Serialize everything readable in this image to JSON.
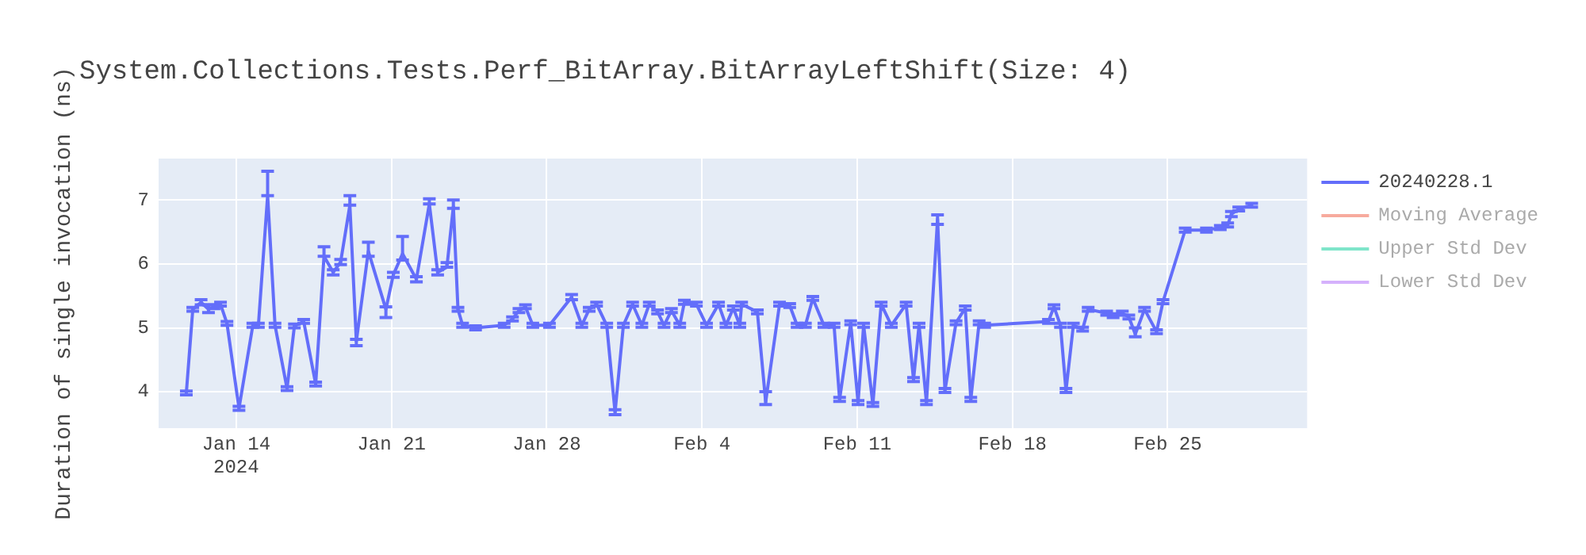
{
  "chart_data": {
    "type": "line",
    "title": "System.Collections.Tests.Perf_BitArray.BitArrayLeftShift(Size: 4)",
    "ylabel": "Duration of single invocation (ns)",
    "x": [
      "2024-01-11T18:00",
      "2024-01-12T01:00",
      "2024-01-12T10:00",
      "2024-01-12T18:00",
      "2024-01-13T00:00",
      "2024-01-13T07:00",
      "2024-01-13T14:00",
      "2024-01-14T03:00",
      "2024-01-14T18:00",
      "2024-01-15T00:00",
      "2024-01-15T10:00",
      "2024-01-15T18:00",
      "2024-01-16T07:00",
      "2024-01-16T15:00",
      "2024-01-17T01:00",
      "2024-01-17T14:00",
      "2024-01-17T23:00",
      "2024-01-18T09:00",
      "2024-01-18T17:00",
      "2024-01-19T03:00",
      "2024-01-19T10:00",
      "2024-01-19T23:00",
      "2024-01-20T18:00",
      "2024-01-21T02:00",
      "2024-01-21T12:00",
      "2024-01-22T03:00",
      "2024-01-22T17:00",
      "2024-01-23T02:00",
      "2024-01-23T12:00",
      "2024-01-23T19:00",
      "2024-01-24T00:00",
      "2024-01-24T05:00",
      "2024-01-24T19:00",
      "2024-01-26T02:00",
      "2024-01-26T11:00",
      "2024-01-26T18:00",
      "2024-01-27T01:00",
      "2024-01-27T09:00",
      "2024-01-28T03:00",
      "2024-01-29T03:00",
      "2024-01-29T14:00",
      "2024-01-29T22:00",
      "2024-01-30T06:00",
      "2024-01-30T17:00",
      "2024-01-31T02:00",
      "2024-01-31T11:00",
      "2024-01-31T21:00",
      "2024-02-01T07:00",
      "2024-02-01T15:00",
      "2024-02-02T00:00",
      "2024-02-02T07:00",
      "2024-02-02T15:00",
      "2024-02-03T00:00",
      "2024-02-03T05:00",
      "2024-02-03T18:00",
      "2024-02-04T05:00",
      "2024-02-04T18:00",
      "2024-02-05T02:00",
      "2024-02-05T10:00",
      "2024-02-05T17:00",
      "2024-02-05T19:00",
      "2024-02-06T12:00",
      "2024-02-06T21:00",
      "2024-02-07T12:00",
      "2024-02-07T23:00",
      "2024-02-08T07:00",
      "2024-02-08T16:00",
      "2024-02-09T00:00",
      "2024-02-09T12:00",
      "2024-02-09T23:00",
      "2024-02-10T05:00",
      "2024-02-10T17:00",
      "2024-02-11T01:00",
      "2024-02-11T07:00",
      "2024-02-11T17:00",
      "2024-02-12T02:00",
      "2024-02-12T13:00",
      "2024-02-13T05:00",
      "2024-02-13T13:00",
      "2024-02-13T19:00",
      "2024-02-14T03:00",
      "2024-02-14T15:00",
      "2024-02-14T23:00",
      "2024-02-15T11:00",
      "2024-02-15T21:00",
      "2024-02-16T03:00",
      "2024-02-16T12:00",
      "2024-02-16T18:00",
      "2024-02-19T15:00",
      "2024-02-19T21:00",
      "2024-02-20T04:00",
      "2024-02-20T10:00",
      "2024-02-20T18:00",
      "2024-02-21T04:00",
      "2024-02-21T10:00",
      "2024-02-22T06:00",
      "2024-02-22T13:00",
      "2024-02-22T23:00",
      "2024-02-23T06:00",
      "2024-02-23T13:00",
      "2024-02-23T23:00",
      "2024-02-24T12:00",
      "2024-02-24T19:00",
      "2024-02-25T19:00",
      "2024-02-26T18:00",
      "2024-02-27T09:00",
      "2024-02-27T17:00",
      "2024-02-27T21:00",
      "2024-02-28T05:00",
      "2024-02-28T19:00"
    ],
    "series": [
      {
        "name": "20240228.1",
        "color": "#636efa",
        "values": [
          3.98,
          5.29,
          5.4,
          5.29,
          5.33,
          5.37,
          5.07,
          3.74,
          5.04,
          5.04,
          7.07,
          5.04,
          4.05,
          5.03,
          5.1,
          4.12,
          6.12,
          5.87,
          6.03,
          6.92,
          4.79,
          6.2,
          5.29,
          5.83,
          6.16,
          5.76,
          6.94,
          5.87,
          5.95,
          6.9,
          5.29,
          5.04,
          5.0,
          5.04,
          5.14,
          5.27,
          5.33,
          5.04,
          5.04,
          5.48,
          5.04,
          5.29,
          5.37,
          5.04,
          3.68,
          5.04,
          5.37,
          5.04,
          5.37,
          5.25,
          5.04,
          5.27,
          5.04,
          5.4,
          5.37,
          5.04,
          5.37,
          5.04,
          5.31,
          5.04,
          5.37,
          5.25,
          3.84,
          5.37,
          5.35,
          5.04,
          5.04,
          5.46,
          5.04,
          5.04,
          3.88,
          5.08,
          3.83,
          5.04,
          3.8,
          5.37,
          5.04,
          5.37,
          4.19,
          5.04,
          3.83,
          6.7,
          4.02,
          5.08,
          5.31,
          3.88,
          5.08,
          5.04,
          5.1,
          5.33,
          5.04,
          4.02,
          5.04,
          4.98,
          5.29,
          5.23,
          5.19,
          5.23,
          5.17,
          4.9,
          5.29,
          4.94,
          5.41,
          6.53,
          6.53,
          6.57,
          6.61,
          6.78,
          6.86,
          6.92
        ],
        "errors": [
          0.03,
          0.03,
          0.04,
          [
            5.24,
            5.36
          ],
          0.03,
          0.03,
          0.03,
          0.03,
          0.03,
          0.03,
          [
            7.07,
            7.45
          ],
          0.03,
          0.03,
          0.03,
          0.03,
          0.03,
          [
            6.12,
            6.27
          ],
          0.04,
          0.04,
          [
            6.92,
            7.07
          ],
          [
            4.72,
            4.82
          ],
          [
            6.12,
            6.34
          ],
          [
            5.16,
            5.33
          ],
          0.04,
          [
            6.06,
            6.43
          ],
          0.04,
          [
            6.94,
            7.02
          ],
          0.04,
          [
            5.95,
            6.02
          ],
          [
            6.87,
            7.0
          ],
          0.03,
          0.03,
          0.03,
          0.03,
          0.03,
          0.03,
          0.03,
          0.03,
          0.03,
          0.04,
          0.03,
          0.03,
          0.03,
          0.03,
          0.04,
          0.03,
          0.03,
          0.03,
          0.03,
          0.03,
          0.03,
          0.03,
          0.03,
          0.03,
          0.03,
          0.03,
          0.03,
          0.03,
          0.03,
          0.03,
          0.03,
          0.03,
          [
            3.8,
            4.0
          ],
          0.03,
          0.03,
          0.03,
          0.03,
          0.03,
          0.03,
          0.03,
          0.03,
          0.03,
          0.03,
          0.03,
          0.03,
          0.03,
          0.03,
          0.03,
          0.03,
          0.03,
          0.03,
          [
            6.62,
            6.77
          ],
          0.03,
          0.03,
          0.03,
          0.03,
          0.03,
          0.03,
          0.03,
          0.03,
          0.03,
          0.03,
          0.03,
          0.03,
          0.03,
          0.03,
          0.03,
          0.03,
          0.03,
          [
            4.86,
            5.0
          ],
          0.03,
          0.03,
          0.03,
          0.03,
          0.03,
          0.03,
          0.03,
          0.04,
          0.03,
          0.03
        ]
      },
      {
        "name": "Moving Average",
        "color": "#ef553b",
        "values": [
          null,
          null,
          null,
          null,
          null,
          null,
          null,
          null,
          null,
          null,
          null,
          null,
          null,
          null,
          null,
          null,
          null,
          null,
          null,
          null,
          null,
          null,
          null,
          null,
          null,
          null,
          null,
          null,
          null,
          null,
          null,
          null,
          null,
          null,
          null,
          null,
          null,
          null,
          null,
          null,
          null,
          null,
          null,
          null,
          null,
          null,
          null,
          null,
          null,
          null,
          null,
          null,
          null,
          null,
          null,
          null,
          null,
          null,
          null,
          null,
          null,
          null,
          null,
          null,
          null,
          null,
          null,
          null,
          null,
          null,
          null,
          null,
          null,
          null,
          null,
          null,
          null,
          null,
          null,
          null,
          null,
          null,
          null,
          null,
          null,
          null,
          null,
          null,
          null,
          null,
          null,
          null,
          null,
          null,
          null,
          null,
          null,
          null,
          null,
          null,
          null,
          null,
          null,
          null,
          null,
          null,
          null,
          null,
          null,
          null
        ]
      },
      {
        "name": "Upper Std Dev",
        "color": "#00cc96",
        "values": [
          null,
          null,
          null,
          null,
          null,
          null,
          null,
          null,
          null,
          null,
          null,
          null,
          null,
          null,
          null,
          null,
          null,
          null,
          null,
          null,
          null,
          null,
          null,
          null,
          null,
          null,
          null,
          null,
          null,
          null,
          null,
          null,
          null,
          null,
          null,
          null,
          null,
          null,
          null,
          null,
          null,
          null,
          null,
          null,
          null,
          null,
          null,
          null,
          null,
          null,
          null,
          null,
          null,
          null,
          null,
          null,
          null,
          null,
          null,
          null,
          null,
          null,
          null,
          null,
          null,
          null,
          null,
          null,
          null,
          null,
          null,
          null,
          null,
          null,
          null,
          null,
          null,
          null,
          null,
          null,
          null,
          null,
          null,
          null,
          null,
          null,
          null,
          null,
          null,
          null,
          null,
          null,
          null,
          null,
          null,
          null,
          null,
          null,
          null,
          null,
          null,
          null,
          null,
          null,
          null,
          null,
          null,
          null,
          null,
          null
        ]
      },
      {
        "name": "Lower Std Dev",
        "color": "#ab63fa",
        "values": [
          null,
          null,
          null,
          null,
          null,
          null,
          null,
          null,
          null,
          null,
          null,
          null,
          null,
          null,
          null,
          null,
          null,
          null,
          null,
          null,
          null,
          null,
          null,
          null,
          null,
          null,
          null,
          null,
          null,
          null,
          null,
          null,
          null,
          null,
          null,
          null,
          null,
          null,
          null,
          null,
          null,
          null,
          null,
          null,
          null,
          null,
          null,
          null,
          null,
          null,
          null,
          null,
          null,
          null,
          null,
          null,
          null,
          null,
          null,
          null,
          null,
          null,
          null,
          null,
          null,
          null,
          null,
          null,
          null,
          null,
          null,
          null,
          null,
          null,
          null,
          null,
          null,
          null,
          null,
          null,
          null,
          null,
          null,
          null,
          null,
          null,
          null,
          null,
          null,
          null,
          null,
          null,
          null,
          null,
          null,
          null,
          null,
          null,
          null,
          null,
          null,
          null,
          null,
          null,
          null,
          null,
          null,
          null,
          null,
          null
        ]
      }
    ],
    "xlim": [
      "2024-01-10T12:00",
      "2024-03-02T07:00"
    ],
    "xticks": [
      {
        "value": "2024-01-14",
        "label": "Jan 14\n2024"
      },
      {
        "value": "2024-01-21",
        "label": "Jan 21"
      },
      {
        "value": "2024-01-28",
        "label": "Jan 28"
      },
      {
        "value": "2024-02-04",
        "label": "Feb 4"
      },
      {
        "value": "2024-02-11",
        "label": "Feb 11"
      },
      {
        "value": "2024-02-18",
        "label": "Feb 18"
      },
      {
        "value": "2024-02-25",
        "label": "Feb 25"
      }
    ],
    "ylim": [
      3.43,
      7.65
    ],
    "yticks": [
      4,
      5,
      6,
      7
    ],
    "grid": true,
    "legend": "top right",
    "marker": "none",
    "line_style": "solid"
  }
}
